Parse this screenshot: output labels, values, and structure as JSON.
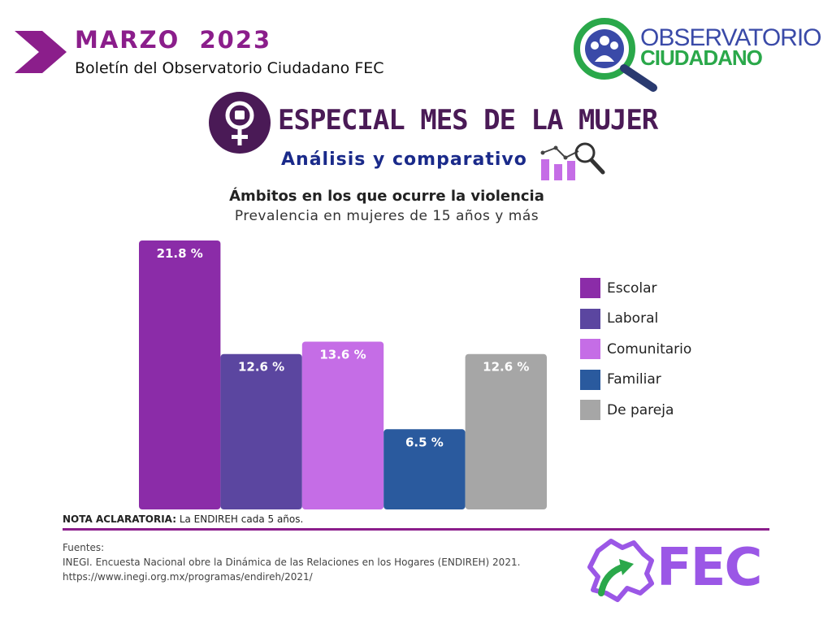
{
  "header": {
    "month": "MARZO  2023",
    "bulletin": "Boletín del Observatorio Ciudadano FEC"
  },
  "logo": {
    "line1": "OBSERVATORIO",
    "line2": "CIUDADANO"
  },
  "special": {
    "title": "ESPECIAL MES DE LA MUJER",
    "subtitle": "Análisis y comparativo"
  },
  "chart_data": {
    "type": "bar",
    "title": "Ámbitos en los que ocurre la violencia",
    "subtitle": "Prevalencia en mujeres de 15 años y más",
    "categories": [
      "Escolar",
      "Laboral",
      "Comunitario",
      "Familiar",
      "De pareja"
    ],
    "values": [
      21.8,
      12.6,
      13.6,
      6.5,
      12.6
    ],
    "data_labels": [
      "21.8 %",
      "12.6 %",
      "13.6 %",
      "6.5 %",
      "12.6 %"
    ],
    "colors": [
      "#8b2ca8",
      "#5b46a0",
      "#c56de6",
      "#2a5a9e",
      "#a6a6a6"
    ],
    "ylim": [
      0,
      21.8
    ],
    "xlabel": "",
    "ylabel": "",
    "legend_position": "right",
    "grid": false
  },
  "legend": {
    "items": [
      {
        "label": "Escolar",
        "color": "#8b2ca8"
      },
      {
        "label": "Laboral",
        "color": "#5b46a0"
      },
      {
        "label": "Comunitario",
        "color": "#c56de6"
      },
      {
        "label": "Familiar",
        "color": "#2a5a9e"
      },
      {
        "label": "De pareja",
        "color": "#a6a6a6"
      }
    ]
  },
  "note": {
    "label": "NOTA ACLARATORIA:",
    "text": " La ENDIREH cada 5 años."
  },
  "sources": {
    "heading": "Fuentes:",
    "line1": "INEGI. Encuesta Nacional obre la Dinámica de las Relaciones en los Hogares (ENDIREH) 2021.",
    "line2": "https://www.inegi.org.mx/programas/endireh/2021/"
  },
  "footer_logo": {
    "text": "FEC",
    "color": "#9b57e6"
  },
  "colors": {
    "brand_purple": "#8b1e8b",
    "title_dark": "#4a1a56",
    "navy": "#1a2a8a",
    "green": "#2aa84a"
  }
}
